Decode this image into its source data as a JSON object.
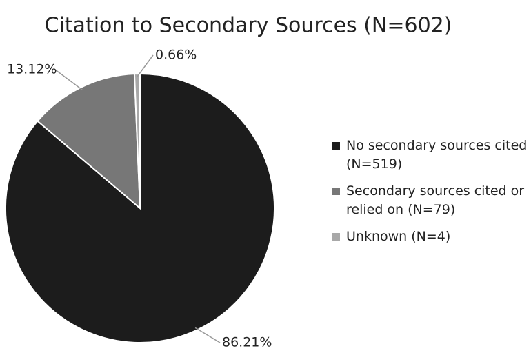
{
  "chart_data": {
    "type": "pie",
    "title": "Citation to Secondary Sources (N=602)",
    "categories": [
      "No secondary sources cited (N=519)",
      "Secondary sources cited or relied on (N=79)",
      "Unknown (N=4)"
    ],
    "values": [
      86.21,
      13.12,
      0.66
    ],
    "value_labels": [
      "86.21%",
      "13.12%",
      "0.66%"
    ],
    "colors": [
      "#1c1c1c",
      "#777777",
      "#a8a8a8"
    ],
    "legend": "right"
  }
}
